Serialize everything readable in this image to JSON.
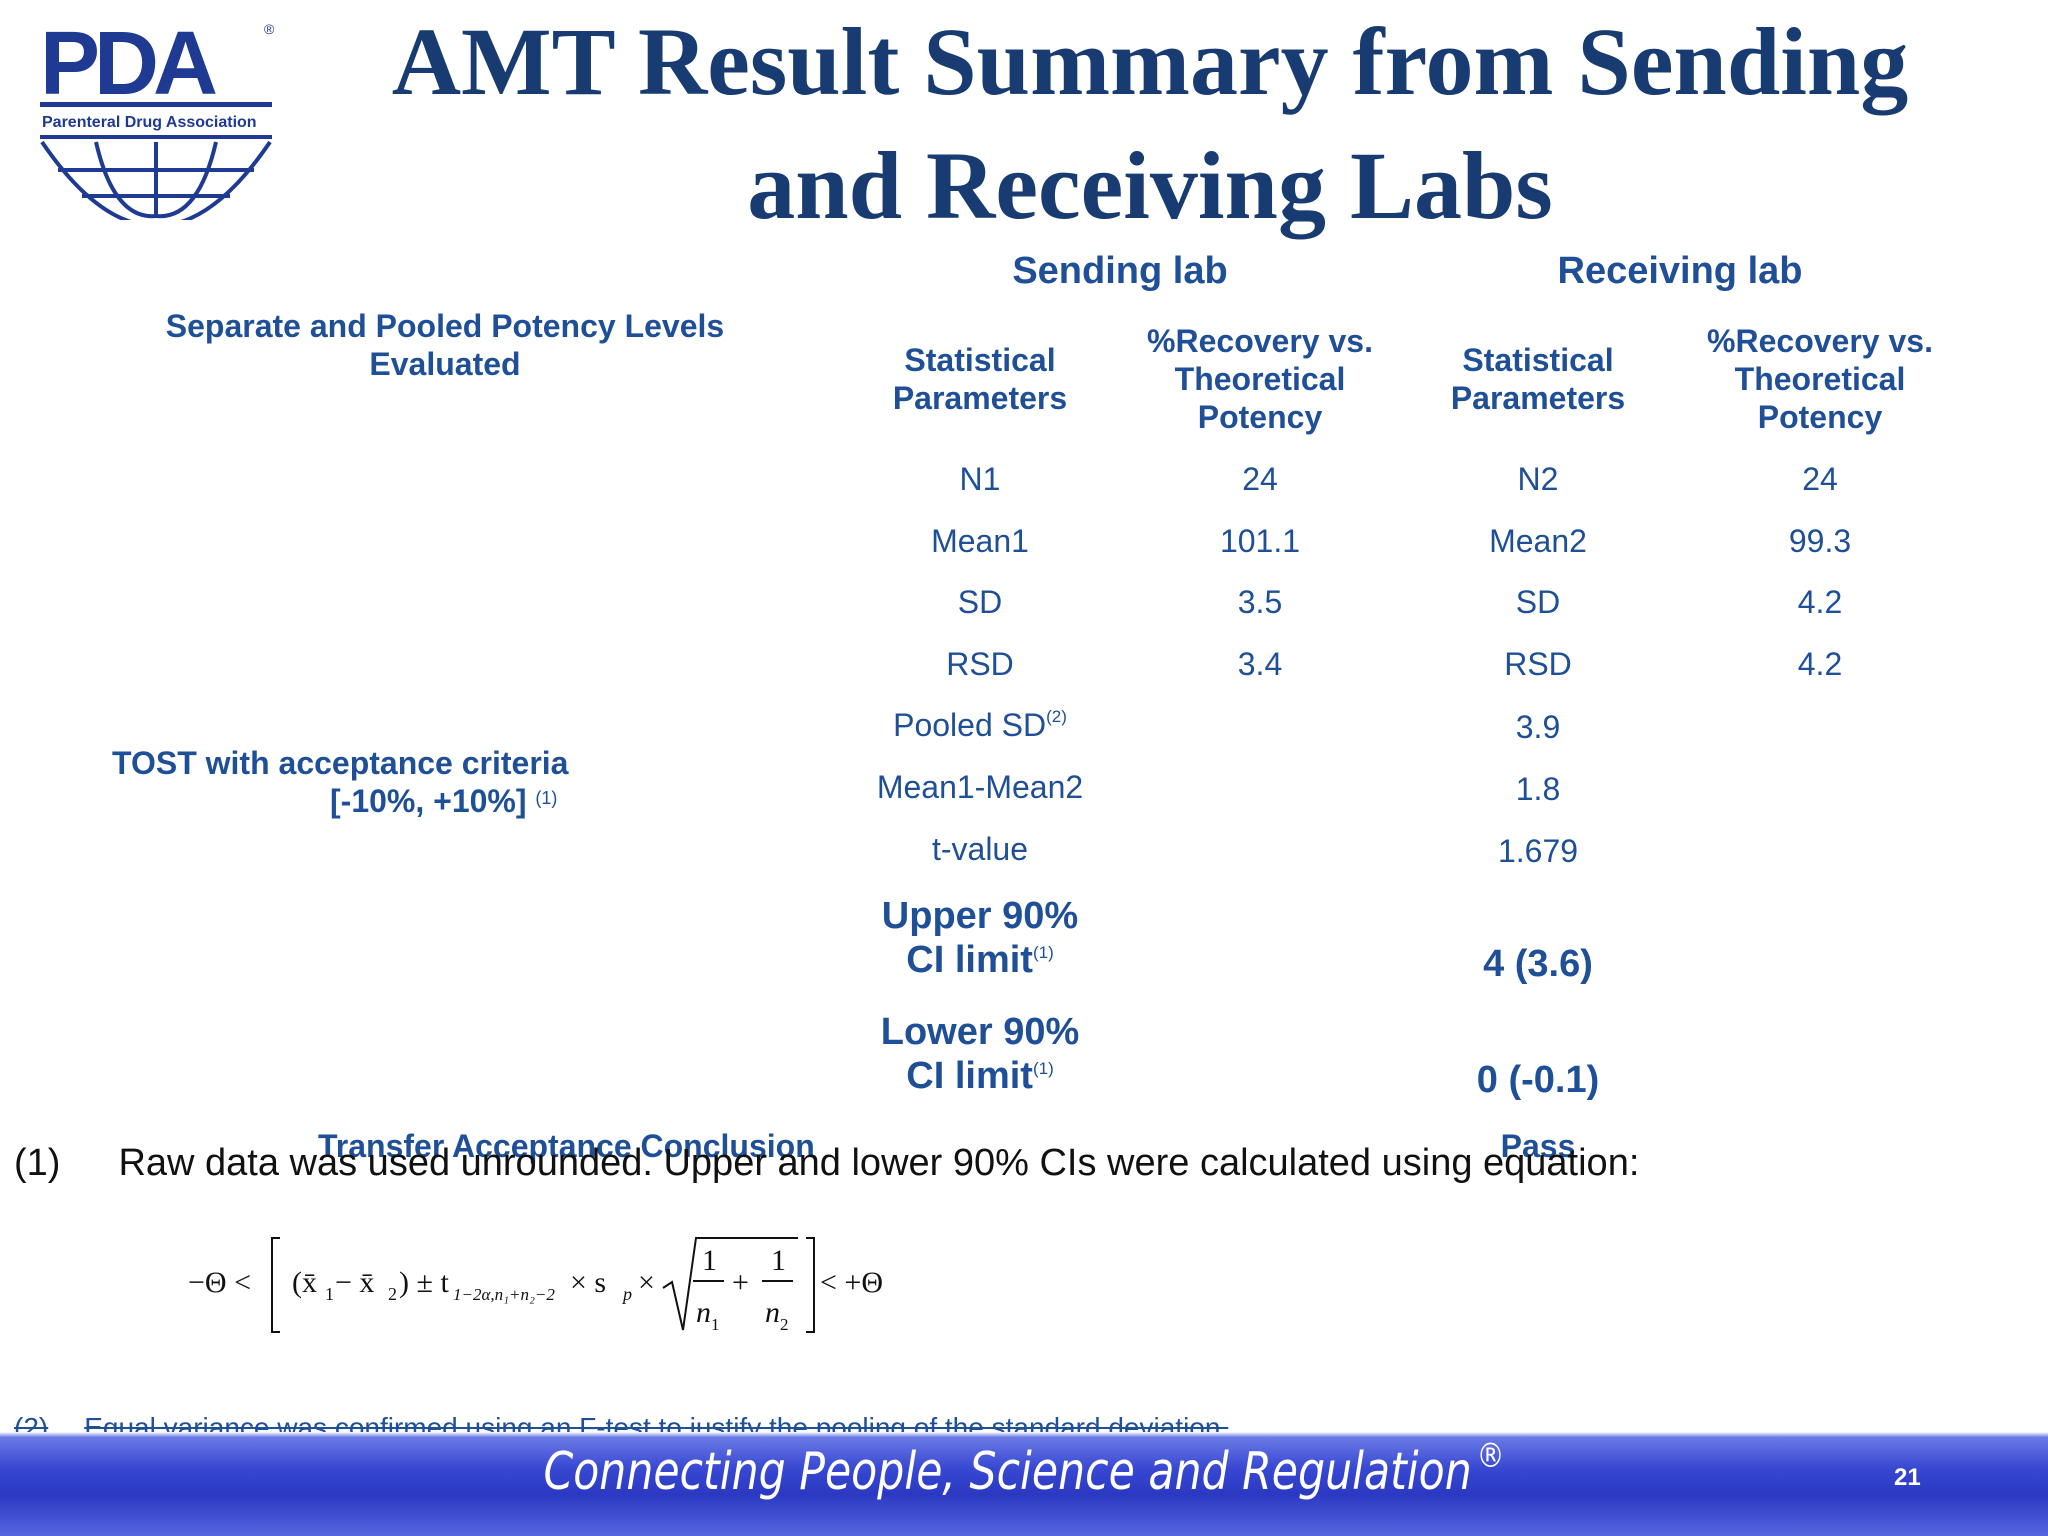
{
  "logo": {
    "text": "PDA",
    "registered": "®",
    "subtitle": "Parenteral Drug Association"
  },
  "title": {
    "line1": "AMT Result Summary from Sending",
    "line2": "and Receiving Labs"
  },
  "table": {
    "sending_header": "Sending lab",
    "receiving_header": "Receiving lab",
    "left_heading_line1": "Separate and Pooled Potency Levels",
    "left_heading_line2": "Evaluated",
    "col_stat_line1": "Statistical",
    "col_stat_line2": "Parameters",
    "col_rec_line1": "%Recovery vs.",
    "col_rec_line2": "Theoretical",
    "col_rec_line3": "Potency",
    "rows": [
      {
        "sp": "N1",
        "sv": "24",
        "rp": "N2",
        "rv": "24"
      },
      {
        "sp": "Mean1",
        "sv": "101.1",
        "rp": "Mean2",
        "rv": "99.3"
      },
      {
        "sp": "SD",
        "sv": "3.5",
        "rp": "SD",
        "rv": "4.2"
      },
      {
        "sp": "RSD",
        "sv": "3.4",
        "rp": "RSD",
        "rv": "4.2"
      }
    ],
    "pooled_sd_label": "Pooled SD",
    "pooled_sd_sup": "(2)",
    "pooled_sd_value": "3.9",
    "mean_diff_label": "Mean1-Mean2",
    "mean_diff_value": "1.8",
    "t_value_label": "t-value",
    "t_value_value": "1.679",
    "tost_line1": "TOST with acceptance criteria",
    "tost_line2": "[-10%, +10%]",
    "tost_sup": "(1)",
    "upper_line1": "Upper 90%",
    "upper_line2": "CI limit",
    "upper_sup": "(1)",
    "upper_value": "4 (3.6)",
    "lower_line1": "Lower 90%",
    "lower_line2": "CI limit",
    "lower_sup": "(1)",
    "lower_value": "0 (-0.1)",
    "conclusion_label": "Transfer Acceptance Conclusion",
    "conclusion_value": "Pass"
  },
  "notes": {
    "note1_num": "(1)",
    "note1_text": "Raw data was used unrounded.  Upper and lower 90% CIs were calculated using equation:",
    "note2_num": "(2)",
    "note2_text": "Equal variance was confirmed using an F-test to justify the pooling of the standard deviation."
  },
  "equation": {
    "left": "−Θ <",
    "diff": "(x̄",
    "sub1": "1",
    "minus": " − x̄",
    "sub2": "2",
    "pm": ") ± t",
    "t_sub": "1−2α,n₁+n₂−2",
    "times_sp": "× s",
    "sp_sub": "p",
    "times2": "×",
    "one": "1",
    "n": "n",
    "plus": "+",
    "right": "< +Θ"
  },
  "footer": {
    "slogan": "Connecting People, Science and Regulation",
    "registered": "®",
    "page_number": "21"
  },
  "colors": {
    "title": "#183c72",
    "text_blue": "#1f4f96",
    "footer_band": "#2b39c2"
  }
}
